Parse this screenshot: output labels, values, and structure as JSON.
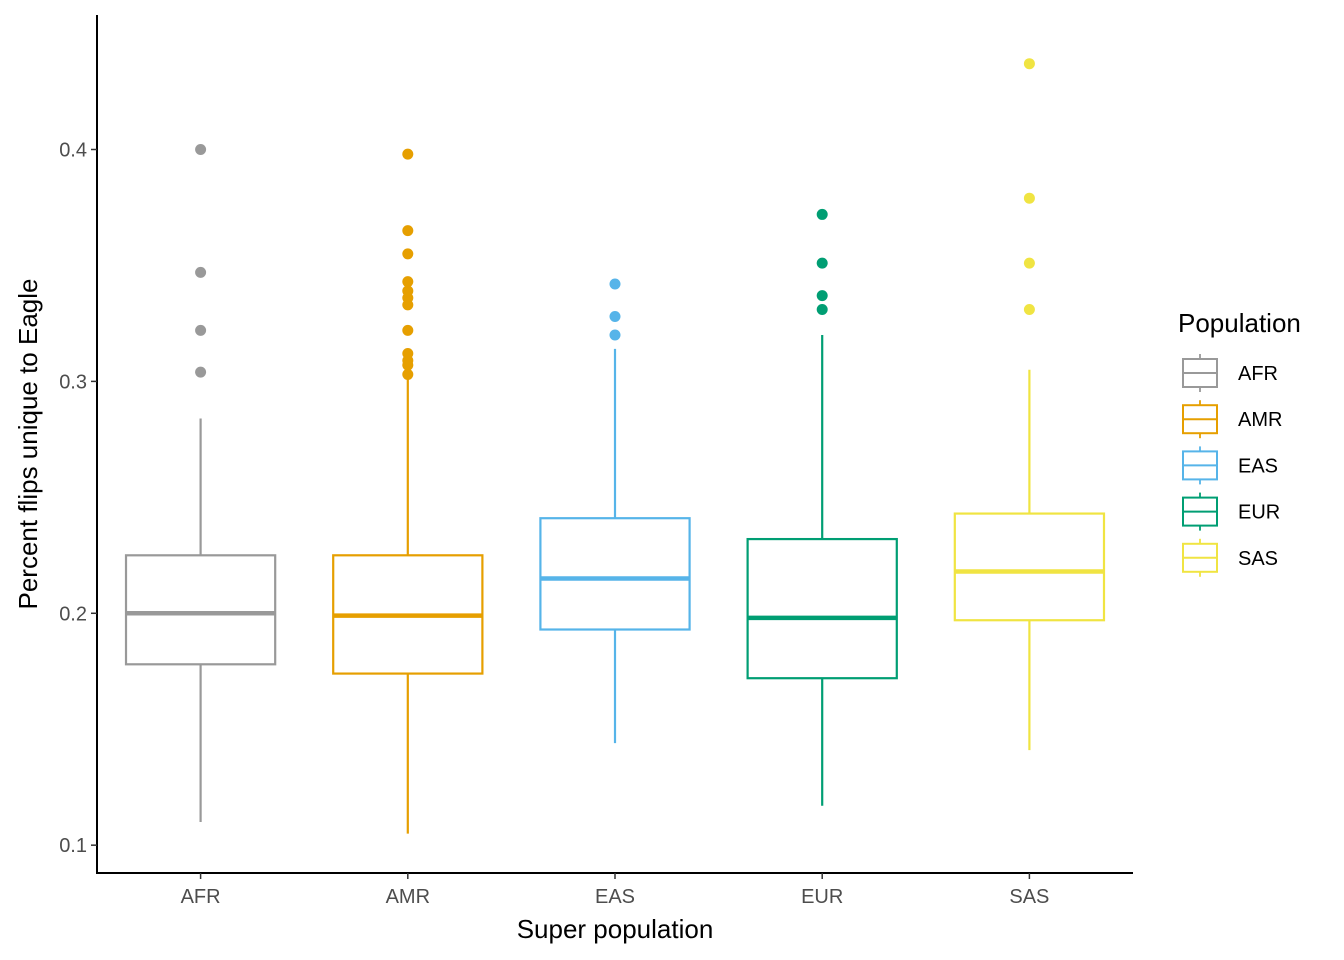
{
  "chart_data": {
    "type": "box",
    "xlabel": "Super population",
    "ylabel": "Percent flips unique to Eagle",
    "ylim": [
      0.088,
      0.458
    ],
    "yticks": [
      0.1,
      0.2,
      0.3,
      0.4
    ],
    "ytick_labels": [
      "0.1",
      "0.2",
      "0.3",
      "0.4"
    ],
    "grid": false,
    "legend": {
      "title": "Population",
      "position": "right"
    },
    "categories": [
      "AFR",
      "AMR",
      "EAS",
      "EUR",
      "SAS"
    ],
    "series": [
      {
        "name": "AFR",
        "color": "#999999",
        "whisker_low": 0.11,
        "q1": 0.178,
        "median": 0.2,
        "q3": 0.225,
        "whisker_high": 0.284,
        "outliers": [
          0.304,
          0.322,
          0.347,
          0.4
        ]
      },
      {
        "name": "AMR",
        "color": "#E69F00",
        "whisker_low": 0.105,
        "q1": 0.174,
        "median": 0.199,
        "q3": 0.225,
        "whisker_high": 0.302,
        "outliers": [
          0.303,
          0.307,
          0.309,
          0.312,
          0.322,
          0.333,
          0.336,
          0.339,
          0.343,
          0.355,
          0.365,
          0.398
        ]
      },
      {
        "name": "EAS",
        "color": "#56B4E9",
        "whisker_low": 0.144,
        "q1": 0.193,
        "median": 0.215,
        "q3": 0.241,
        "whisker_high": 0.314,
        "outliers": [
          0.32,
          0.328,
          0.342
        ]
      },
      {
        "name": "EUR",
        "color": "#009E73",
        "whisker_low": 0.117,
        "q1": 0.172,
        "median": 0.198,
        "q3": 0.232,
        "whisker_high": 0.32,
        "outliers": [
          0.331,
          0.337,
          0.351,
          0.372
        ]
      },
      {
        "name": "SAS",
        "color": "#F0E442",
        "whisker_low": 0.141,
        "q1": 0.197,
        "median": 0.218,
        "q3": 0.243,
        "whisker_high": 0.305,
        "outliers": [
          0.331,
          0.351,
          0.379,
          0.437
        ]
      }
    ]
  }
}
